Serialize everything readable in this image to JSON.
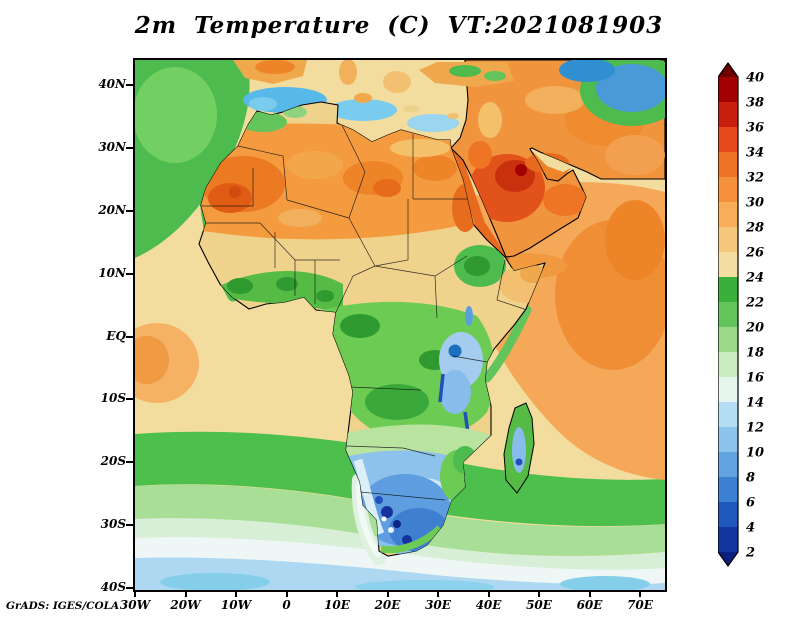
{
  "title": "2m Temperature (C) VT:2021081903",
  "credit": "GrADS: IGES/COLA",
  "chart_data": {
    "type": "heatmap",
    "title": "2m Temperature (C) VT:2021081903",
    "variable": "2m Temperature",
    "units": "C",
    "valid_time_label": "VT:2021081903",
    "region": "Africa, Atlantic / Indian Ocean sector (30W-75E, 40S-44N)",
    "x_ticks": [
      "30W",
      "20W",
      "10W",
      "0",
      "10E",
      "20E",
      "30E",
      "40E",
      "50E",
      "60E",
      "70E"
    ],
    "y_ticks": [
      "40N",
      "30N",
      "20N",
      "10N",
      "EQ",
      "10S",
      "20S",
      "30S",
      "40S"
    ],
    "grid": false,
    "legend_position": "right",
    "colorbar": {
      "orientation": "vertical",
      "position": "right",
      "values": [
        40,
        38,
        36,
        34,
        32,
        30,
        28,
        26,
        24,
        22,
        20,
        18,
        16,
        14,
        12,
        10,
        8,
        6,
        4,
        2
      ],
      "colors": [
        "#6f0000",
        "#a00000",
        "#c81e10",
        "#e64a1c",
        "#ef7125",
        "#f5913a",
        "#f8ad58",
        "#f6c87e",
        "#f3dda0",
        "#3ab03a",
        "#62c45a",
        "#9cd88a",
        "#c8ecc0",
        "#e6f6ee",
        "#b4dcf2",
        "#8cc4ec",
        "#62a4e2",
        "#3c80d2",
        "#2158bc",
        "#12359e",
        "#0a1f7e"
      ]
    },
    "approx_region_values_c": [
      {
        "region": "Western Sahara / Mauritania desert",
        "temp": "30-36"
      },
      {
        "region": "Central Sahara",
        "temp": "28-34"
      },
      {
        "region": "Sahel",
        "temp": "26-30"
      },
      {
        "region": "Guinea coast",
        "temp": "22-26"
      },
      {
        "region": "Congo basin",
        "temp": "20-24"
      },
      {
        "region": "Ethiopian highlands",
        "temp": "18-22"
      },
      {
        "region": "East African lakes region",
        "temp": "12-18"
      },
      {
        "region": "Arabian Peninsula interior",
        "temp": "34-38"
      },
      {
        "region": "Red Sea / Persian Gulf coasts",
        "temp": "32-36"
      },
      {
        "region": "Arabian Sea",
        "temp": "28-30"
      },
      {
        "region": "Tropical Atlantic",
        "temp": "24-28"
      },
      {
        "region": "Northeast Atlantic (NW corner)",
        "temp": "18-24"
      },
      {
        "region": "Mediterranean patches",
        "temp": "10-16"
      },
      {
        "region": "Kalahari / interior southern Africa",
        "temp": "6-14"
      },
      {
        "region": "South African highveld coldest spots",
        "temp": "2-6"
      },
      {
        "region": "Southern Ocean band 30S-40S",
        "temp": "12-18"
      },
      {
        "region": "Madagascar interior",
        "temp": "10-16"
      }
    ]
  }
}
